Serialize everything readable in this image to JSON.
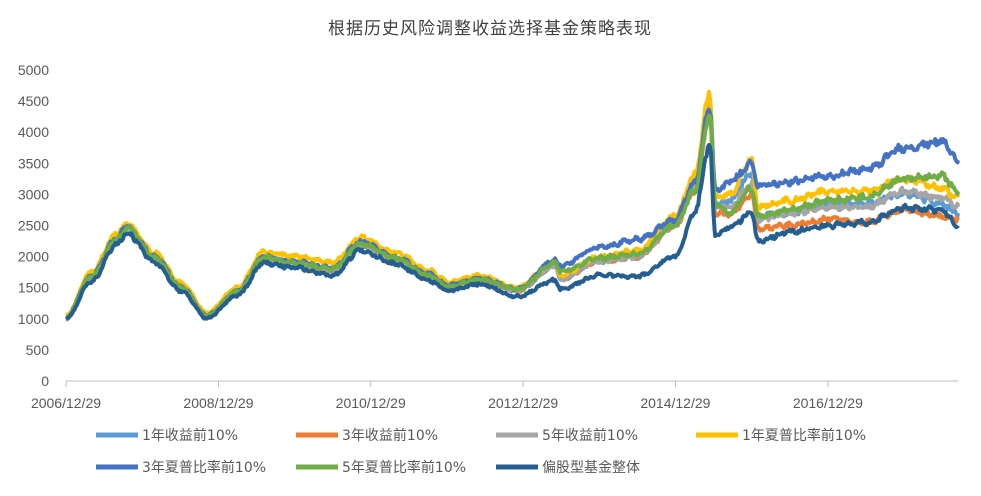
{
  "chart_data": {
    "type": "line",
    "title": "根据历史风险调整收益选择基金策略表现",
    "xlabel": "",
    "ylabel": "",
    "ylim": [
      0,
      5000
    ],
    "yticks": [
      0,
      500,
      1000,
      1500,
      2000,
      2500,
      3000,
      3500,
      4000,
      4500,
      5000
    ],
    "xticks": [
      "2006/12/29",
      "2008/12/29",
      "2010/12/29",
      "2012/12/29",
      "2014/12/29",
      "2016/12/29"
    ],
    "x_dates": [
      "2006/12/29",
      "2007/04/30",
      "2007/08/31",
      "2007/10/16",
      "2008/02/29",
      "2008/06/30",
      "2008/11/04",
      "2009/03/31",
      "2009/08/04",
      "2009/12/31",
      "2010/06/30",
      "2010/11/10",
      "2011/04/29",
      "2011/09/30",
      "2012/01/06",
      "2012/05/31",
      "2012/12/03",
      "2013/05/31",
      "2013/06/25",
      "2013/12/31",
      "2014/06/30",
      "2014/12/29",
      "2015/03/31",
      "2015/06/12",
      "2015/07/08",
      "2015/09/15",
      "2015/12/31",
      "2016/01/28",
      "2016/06/30",
      "2016/12/29",
      "2017/06/30",
      "2017/12/29",
      "2018/06/29",
      "2018/09/14"
    ],
    "series": [
      {
        "name": "1年收益前10%",
        "color": "#5B9BD5",
        "values": [
          1000,
          1650,
          2250,
          2480,
          1950,
          1500,
          1050,
          1420,
          1950,
          1880,
          1780,
          2180,
          1950,
          1680,
          1500,
          1640,
          1460,
          1850,
          1640,
          1930,
          2000,
          2550,
          3150,
          4520,
          2850,
          2900,
          3350,
          2650,
          2700,
          2850,
          2850,
          3000,
          2850,
          2700
        ]
      },
      {
        "name": "3年收益前10%",
        "color": "#ED7D31",
        "values": [
          1000,
          1650,
          2250,
          2480,
          1950,
          1500,
          1050,
          1420,
          1950,
          1880,
          1780,
          2180,
          1950,
          1680,
          1500,
          1640,
          1460,
          1850,
          1640,
          1930,
          2000,
          2500,
          3050,
          4350,
          2700,
          2680,
          3000,
          2450,
          2500,
          2600,
          2550,
          2750,
          2650,
          2600
        ]
      },
      {
        "name": "5年收益前10%",
        "color": "#A5A5A5",
        "values": [
          1000,
          1650,
          2250,
          2480,
          1950,
          1500,
          1050,
          1420,
          1950,
          1880,
          1780,
          2180,
          1950,
          1680,
          1500,
          1640,
          1460,
          1850,
          1640,
          1930,
          2000,
          2520,
          3100,
          4400,
          2800,
          2800,
          3150,
          2600,
          2700,
          2800,
          2800,
          3050,
          2950,
          2800
        ]
      },
      {
        "name": "1年夏普比率前10%",
        "color": "#FFC000",
        "values": [
          1050,
          1750,
          2380,
          2520,
          2050,
          1580,
          1100,
          1500,
          2080,
          2000,
          1900,
          2300,
          2060,
          1780,
          1600,
          1700,
          1500,
          1930,
          1700,
          2000,
          2100,
          2650,
          3300,
          4620,
          2950,
          3000,
          3550,
          2800,
          2900,
          3050,
          3050,
          3250,
          3100,
          2950
        ]
      },
      {
        "name": "3年夏普比率前10%",
        "color": "#4472C4",
        "values": [
          1020,
          1700,
          2300,
          2480,
          2000,
          1520,
          1060,
          1450,
          2000,
          1920,
          1820,
          2240,
          1990,
          1720,
          1540,
          1650,
          1480,
          1950,
          1860,
          2150,
          2280,
          2600,
          3200,
          4400,
          3050,
          3200,
          3480,
          3150,
          3200,
          3300,
          3400,
          3750,
          3850,
          3550
        ]
      },
      {
        "name": "5年夏普比率前10%",
        "color": "#70AD47",
        "values": [
          1010,
          1680,
          2280,
          2460,
          1980,
          1510,
          1050,
          1440,
          1980,
          1900,
          1800,
          2200,
          1970,
          1700,
          1510,
          1640,
          1470,
          1900,
          1760,
          1980,
          2040,
          2500,
          3050,
          4300,
          2850,
          2700,
          3100,
          2650,
          2750,
          2900,
          2950,
          3250,
          3300,
          3050
        ]
      },
      {
        "name": "偏股型基金整体",
        "color": "#255E91",
        "values": [
          1000,
          1600,
          2200,
          2380,
          1900,
          1450,
          1010,
          1380,
          1900,
          1820,
          1700,
          2100,
          1880,
          1620,
          1450,
          1560,
          1360,
          1620,
          1480,
          1700,
          1680,
          2000,
          2700,
          3800,
          2350,
          2480,
          2700,
          2250,
          2400,
          2500,
          2550,
          2780,
          2750,
          2500
        ]
      }
    ],
    "legend_position": "bottom",
    "grid": false
  }
}
